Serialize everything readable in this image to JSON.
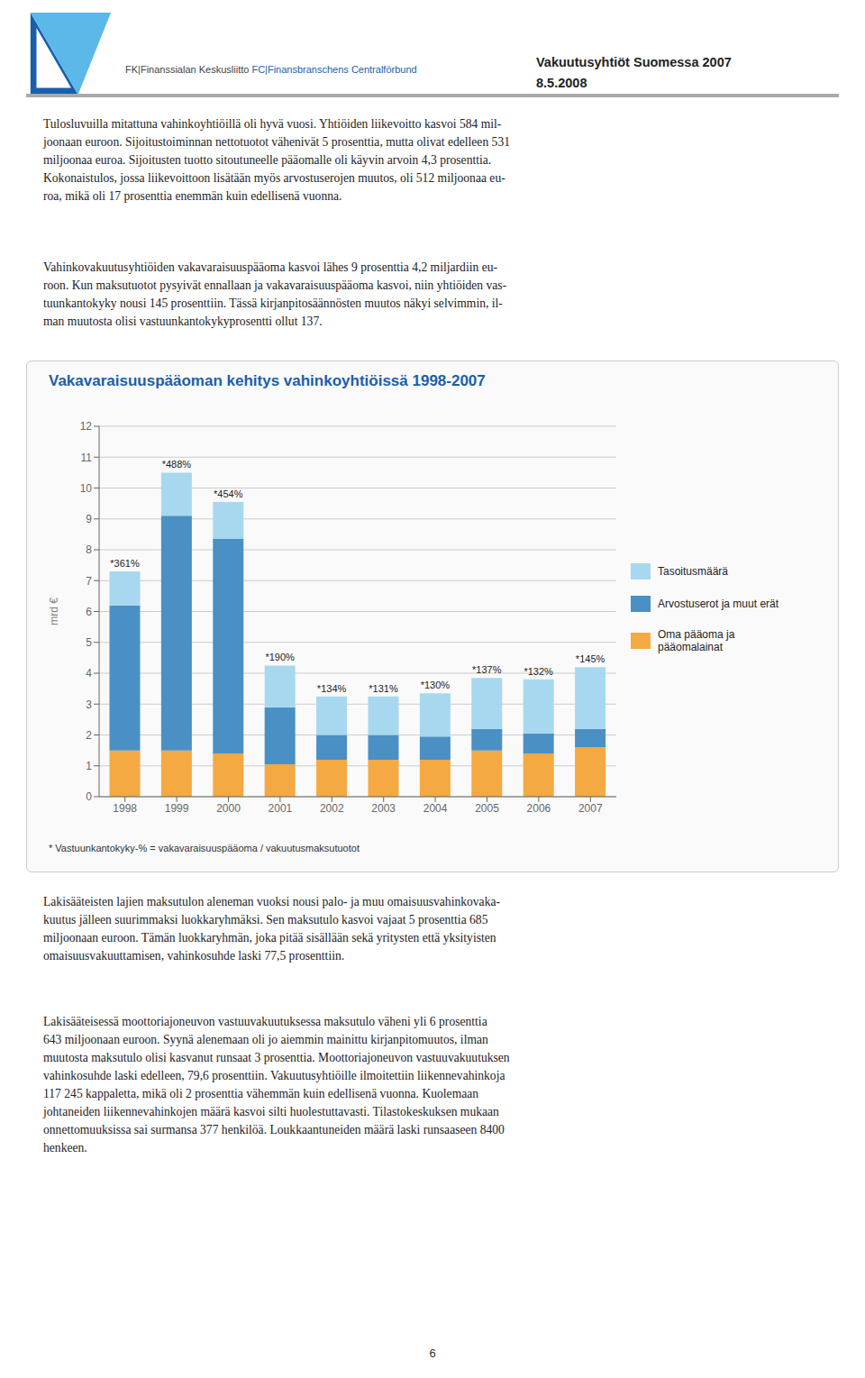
{
  "chart_data": {
    "type": "bar",
    "title": "Vakavaraisuuspääoman kehitys vahinkoyhtiöissä 1998-2007",
    "ylabel": "mrd €",
    "categories": [
      "1998",
      "1999",
      "2000",
      "2001",
      "2002",
      "2003",
      "2004",
      "2005",
      "2006",
      "2007"
    ],
    "series": [
      {
        "name": "Oma pääoma ja\npääomalainat",
        "color": "#F4A942",
        "values": [
          1.5,
          1.5,
          1.4,
          1.05,
          1.2,
          1.2,
          1.2,
          1.5,
          1.4,
          1.6
        ]
      },
      {
        "name": "Arvostuserot ja muut erät",
        "color": "#4A90C4",
        "values": [
          4.7,
          7.6,
          6.95,
          1.85,
          0.8,
          0.8,
          0.75,
          0.7,
          0.65,
          0.6
        ]
      },
      {
        "name": "Tasoitusmäärä",
        "color": "#A8D8F0",
        "values": [
          1.1,
          1.4,
          1.2,
          1.35,
          1.25,
          1.25,
          1.4,
          1.65,
          1.75,
          2.0
        ]
      }
    ],
    "stacked": true,
    "top_labels": [
      "*361%",
      "*488%",
      "*454%",
      "*190%",
      "*134%",
      "*131%",
      "*130%",
      "*137%",
      "*132%",
      "*145%"
    ],
    "ylim": [
      0,
      12
    ],
    "yticks": [
      0,
      1,
      2,
      3,
      4,
      5,
      6,
      7,
      8,
      9,
      10,
      11,
      12
    ],
    "grid": true,
    "legend": "right",
    "annotations": [
      "Vakuutusyhtiöt Suomessa 2007",
      "8.5.2008",
      "FK|Finanssialan Keskusliitto ",
      "FC|Finansbranschens Centralförbund",
      "Tulosluvuilla mitattuna vahinkoyhtiöillä oli hyvä vuosi. Yhtiöiden liikevoitto kasvoi 584 mil-\njoonaan euroon. Sijoitustoiminnan nettotuotot vähenivät 5 prosenttia, mutta olivat edelleen 531\nmiljoonaa euroa. Sijoitusten tuotto sitoutuneelle pääomalle oli käyvin arvoin 4,3 prosenttia.\nKokonaistulos, jossa liikevoittoon lisätään myös arvostuserojen muutos, oli 512 miljoonaa eu-\nroa, mikä oli 17 prosenttia enemmän kuin edellisenä vuonna.",
      "Vahinkovakuutusyhtiöiden vakavaraisuuspääoma kasvoi lähes 9 prosenttia 4,2 miljardiin eu-\nroon. Kun maksutuotot pysyivät ennallaan ja vakavaraisuuspääoma kasvoi, niin yhtiöiden vas-\ntuunkantokyky nousi 145 prosenttiin. Tässä kirjanpitosäännösten muutos näkyi selvimmin, il-\nman muutosta olisi vastuunkantokykyprosentti ollut 137.",
      "* Vastuunkantokyky-% = vakavaraisuuspääoma / vakuutusmaksutuotot",
      "Lakisääteisten lajien maksutulon aleneman vuoksi nousi palo- ja muu omaisuusvahinkovaka-\nkuutus jälleen suurimmaksi luokkaryhmäksi. Sen maksutulo kasvoi vajaat 5 prosenttia 685\nmiljoonaan euroon. Tämän luokkaryhmän, joka pitää sisällään sekä yritysten että yksityisten\nomaisuusvakuuttamisen, vahinkosuhde laski 77,5 prosenttiin.",
      "Lakisääteisessä moottoriajoneuvon vastuuvakuutuksessa maksutulo väheni yli 6 prosenttia\n643 miljoonaan euroon. Syynä alenemaan oli jo aiemmin mainittu kirjanpitomuutos, ilman\nmuutosta maksutulo olisi kasvanut runsaat 3 prosenttia. Moottoriajoneuvon vastuuvakuutuksen\nvahinkosuhde laski edelleen, 79,6 prosenttiin. Vakuutusyhtiöille ilmoitettiin liikennevahinkoja\n117 245 kappaletta, mikä oli 2 prosenttia vähemmän kuin edellisenä vuonna. Kuolemaan\njohtaneiden liikennevahinkojen määrä kasvoi silti huolestuttavasti. Tilastokeskuksen mukaan\nonnettomuuksissa sai surmansa 377 henkilöä. Loukkaantuneiden määrä laski runsaaseen 8400\nhenkeen.",
      "6"
    ]
  }
}
